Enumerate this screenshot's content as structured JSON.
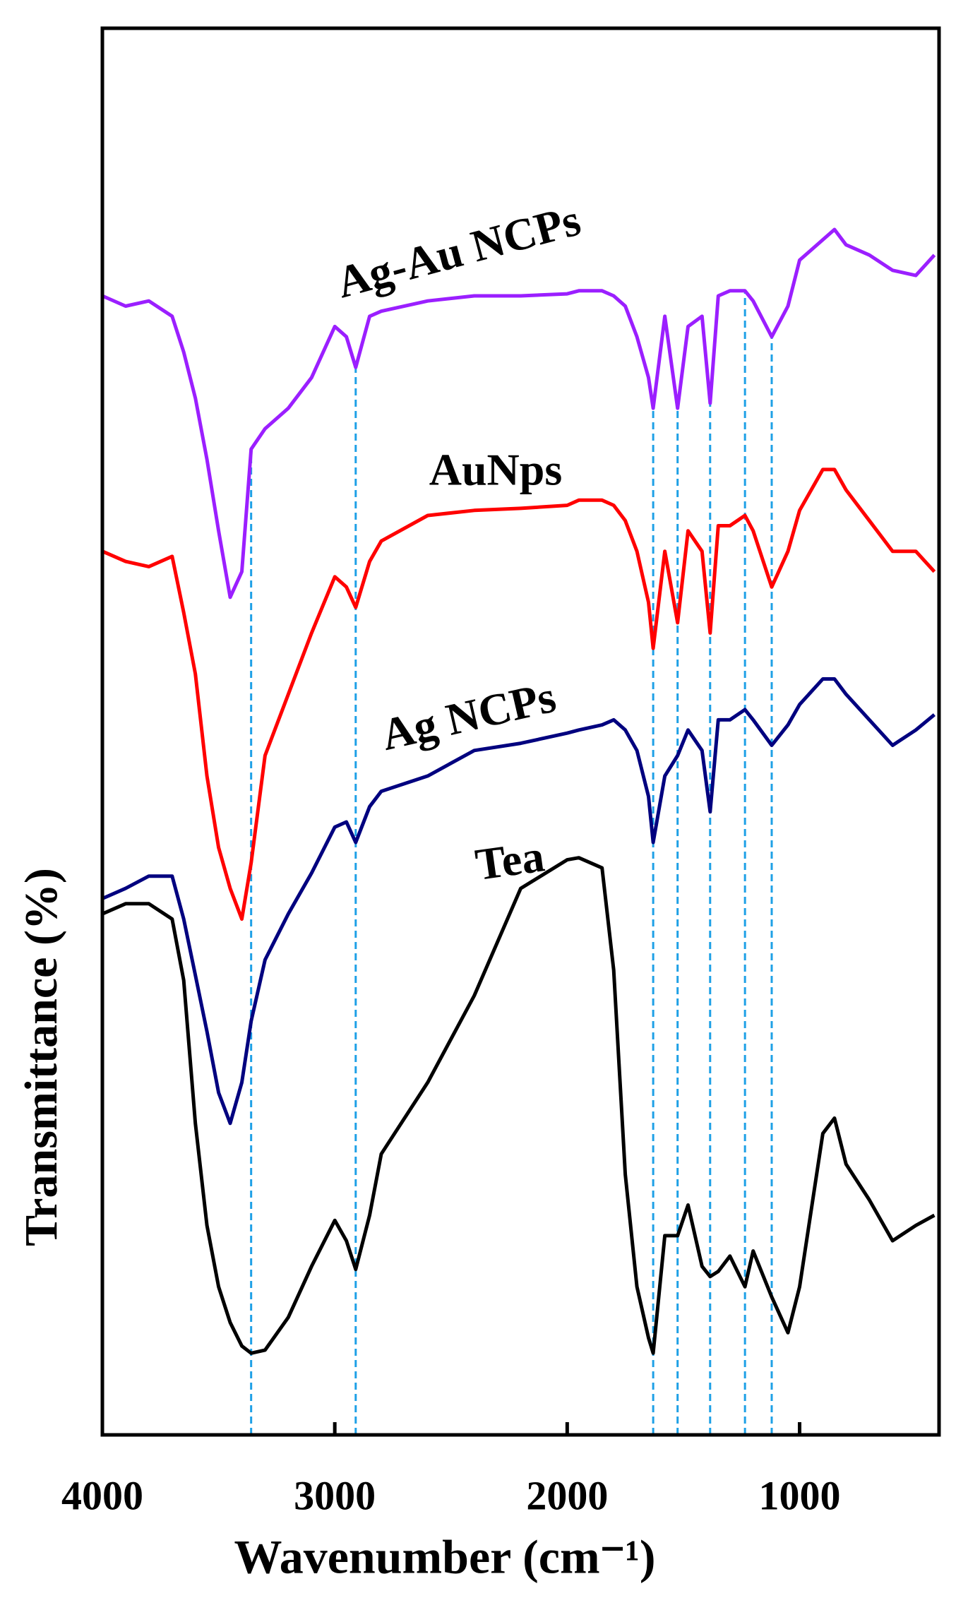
{
  "chart_data": {
    "type": "line",
    "x_label": "Wavenumber (cm⁻¹)",
    "y_label": "Transmittance (%)",
    "x": [
      4000,
      3900,
      3800,
      3700,
      3650,
      3600,
      3550,
      3500,
      3450,
      3400,
      3360,
      3300,
      3200,
      3100,
      3000,
      2950,
      2910,
      2850,
      2800,
      2600,
      2400,
      2200,
      2000,
      1950,
      1850,
      1800,
      1750,
      1700,
      1650,
      1630,
      1580,
      1525,
      1480,
      1420,
      1385,
      1350,
      1300,
      1235,
      1200,
      1120,
      1050,
      1000,
      900,
      850,
      800,
      700,
      600,
      500,
      420
    ],
    "series": [
      {
        "name": "Tea",
        "color": "#000000",
        "values": [
          510,
          520,
          520,
          505,
          445,
          305,
          205,
          145,
          110,
          87,
          80,
          83,
          115,
          165,
          210,
          190,
          162,
          215,
          275,
          345,
          430,
          535,
          563,
          565,
          555,
          455,
          255,
          145,
          95,
          80,
          195,
          195,
          225,
          165,
          155,
          160,
          175,
          145,
          180,
          135,
          100,
          145,
          295,
          310,
          265,
          230,
          190,
          205,
          215
        ]
      },
      {
        "name": "Ag NCPs",
        "color": "#00007f",
        "values": [
          525,
          535,
          547,
          547,
          505,
          450,
          395,
          335,
          305,
          345,
          405,
          465,
          510,
          550,
          595,
          600,
          580,
          615,
          630,
          645,
          670,
          677,
          687,
          690,
          695,
          700,
          690,
          670,
          625,
          580,
          645,
          665,
          690,
          670,
          610,
          700,
          700,
          710,
          700,
          675,
          695,
          715,
          740,
          740,
          725,
          700,
          675,
          690,
          705
        ]
      },
      {
        "name": "AuNps",
        "color": "#ff0000",
        "values": [
          865,
          855,
          850,
          860,
          805,
          745,
          645,
          575,
          535,
          505,
          560,
          665,
          725,
          785,
          840,
          830,
          810,
          855,
          875,
          900,
          905,
          907,
          910,
          915,
          915,
          910,
          895,
          865,
          815,
          770,
          865,
          795,
          885,
          865,
          785,
          890,
          890,
          900,
          885,
          830,
          865,
          905,
          945,
          945,
          925,
          895,
          865,
          865,
          845
        ]
      },
      {
        "name": "Ag-Au NCPs",
        "color": "#9b1fff",
        "values": [
          1115,
          1105,
          1110,
          1095,
          1060,
          1015,
          955,
          885,
          820,
          845,
          965,
          985,
          1005,
          1035,
          1085,
          1075,
          1045,
          1095,
          1100,
          1110,
          1115,
          1115,
          1117,
          1120,
          1120,
          1115,
          1105,
          1075,
          1035,
          1005,
          1095,
          1005,
          1085,
          1095,
          1010,
          1115,
          1120,
          1120,
          1110,
          1075,
          1105,
          1150,
          1170,
          1180,
          1165,
          1155,
          1140,
          1135,
          1155
        ]
      }
    ],
    "reference_lines": [
      3360,
      2910,
      1630,
      1525,
      1385,
      1235,
      1120
    ],
    "reference_color": "#1ea0e6",
    "xlim": [
      4000,
      400
    ],
    "ylim": [
      0,
      1377
    ],
    "xticks": [
      4000,
      3000,
      2000,
      1000
    ]
  }
}
